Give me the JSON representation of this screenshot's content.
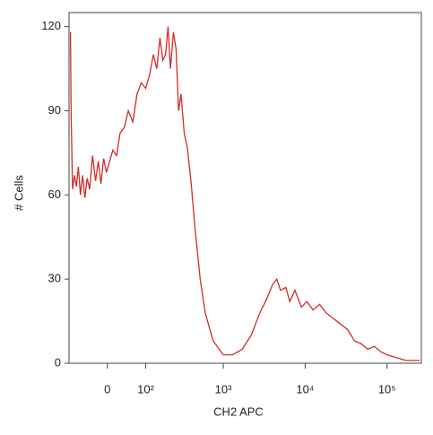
{
  "chart_data": {
    "type": "line",
    "xlabel": "CH2 APC",
    "ylabel": "# Cells",
    "xscale": "asinh",
    "xlim": [
      -100,
      262144
    ],
    "ylim": [
      0,
      125
    ],
    "xticks": [
      {
        "value": 0,
        "label": "0"
      },
      {
        "value": 100,
        "label": "10²"
      },
      {
        "value": 1000,
        "label": "10³"
      },
      {
        "value": 10000,
        "label": "10⁴"
      },
      {
        "value": 100000,
        "label": "10⁵"
      }
    ],
    "yticks": [
      0,
      30,
      60,
      90,
      120
    ],
    "series": [
      {
        "color": "#d42a2a",
        "x": [
          -95,
          -93,
          -88,
          -82,
          -76,
          -70,
          -64,
          -58,
          -52,
          -46,
          -40,
          -33,
          -26,
          -20,
          -14,
          -8,
          -2,
          5,
          12,
          20,
          28,
          38,
          48,
          60,
          72,
          85,
          100,
          115,
          130,
          145,
          160,
          175,
          190,
          205,
          220,
          240,
          260,
          280,
          300,
          330,
          360,
          400,
          450,
          520,
          600,
          750,
          1000,
          1300,
          1700,
          2200,
          2800,
          3400,
          4000,
          4500,
          5000,
          5800,
          6500,
          7500,
          9000,
          10500,
          12500,
          15000,
          18000,
          22000,
          27000,
          33000,
          40000,
          48000,
          58000,
          70000,
          85000,
          100000,
          130000,
          170000,
          220000,
          250000
        ],
        "values": [
          118,
          90,
          62,
          67,
          63,
          70,
          60,
          67,
          59,
          66,
          62,
          74,
          65,
          72,
          64,
          73,
          68,
          72,
          76,
          74,
          82,
          84,
          90,
          86,
          96,
          100,
          98,
          103,
          110,
          105,
          116,
          108,
          110,
          120,
          105,
          118,
          112,
          90,
          96,
          82,
          77,
          65,
          48,
          30,
          18,
          8,
          3,
          3,
          5,
          10,
          18,
          23,
          28,
          30,
          26,
          27,
          22,
          26,
          20,
          22,
          19,
          21,
          18,
          16,
          14,
          12,
          8,
          7,
          5,
          6,
          4,
          3,
          2,
          1,
          1,
          1
        ]
      }
    ]
  }
}
